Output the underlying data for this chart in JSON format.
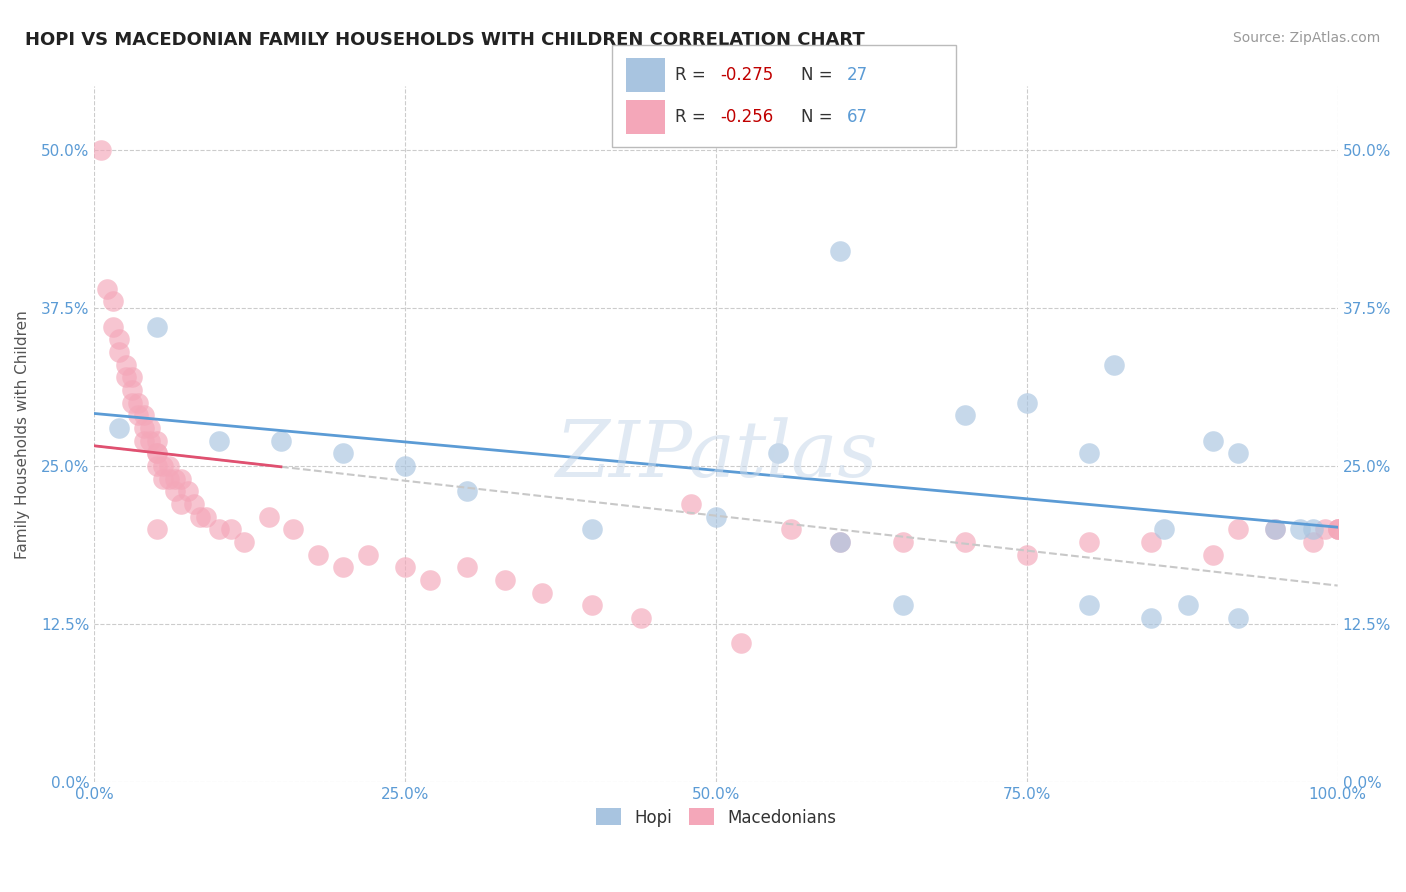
{
  "title": "HOPI VS MACEDONIAN FAMILY HOUSEHOLDS WITH CHILDREN CORRELATION CHART",
  "source_text": "Source: ZipAtlas.com",
  "ylabel": "Family Households with Children",
  "xlim": [
    0.0,
    100.0
  ],
  "ylim": [
    0.0,
    55.0
  ],
  "xticks": [
    0.0,
    25.0,
    50.0,
    75.0,
    100.0
  ],
  "yticks": [
    0.0,
    12.5,
    25.0,
    37.5,
    50.0
  ],
  "xtick_labels": [
    "0.0%",
    "25.0%",
    "50.0%",
    "75.0%",
    "100.0%"
  ],
  "ytick_labels": [
    "0.0%",
    "12.5%",
    "25.0%",
    "37.5%",
    "50.0%"
  ],
  "hopi_color": "#a8c4e0",
  "macedonian_color": "#f4a7b9",
  "hopi_R": -0.275,
  "hopi_N": 27,
  "macedonian_R": -0.256,
  "macedonian_N": 67,
  "watermark": "ZIPatlas",
  "hopi_scatter_x": [
    2,
    5,
    10,
    15,
    20,
    25,
    30,
    40,
    50,
    55,
    60,
    65,
    70,
    75,
    80,
    80,
    85,
    88,
    90,
    92,
    95,
    97,
    98,
    60,
    82,
    86,
    92
  ],
  "hopi_scatter_y": [
    28,
    36,
    27,
    27,
    26,
    25,
    23,
    20,
    21,
    26,
    19,
    14,
    29,
    30,
    26,
    14,
    13,
    14,
    27,
    26,
    20,
    20,
    20,
    42,
    33,
    20,
    13
  ],
  "macedonian_scatter_x": [
    0.5,
    1,
    1.5,
    1.5,
    2,
    2,
    2.5,
    2.5,
    3,
    3,
    3,
    3.5,
    3.5,
    4,
    4,
    4,
    4.5,
    4.5,
    5,
    5,
    5,
    5,
    5.5,
    5.5,
    6,
    6,
    6.5,
    6.5,
    7,
    7,
    7.5,
    8,
    8.5,
    9,
    10,
    11,
    12,
    14,
    16,
    18,
    20,
    22,
    25,
    27,
    30,
    33,
    36,
    40,
    44,
    48,
    52,
    56,
    60,
    65,
    70,
    75,
    80,
    85,
    90,
    92,
    95,
    98,
    99,
    100,
    100,
    100,
    5
  ],
  "macedonian_scatter_y": [
    50,
    39,
    38,
    36,
    35,
    34,
    33,
    32,
    32,
    31,
    30,
    30,
    29,
    29,
    28,
    27,
    28,
    27,
    27,
    26,
    26,
    25,
    25,
    24,
    25,
    24,
    24,
    23,
    24,
    22,
    23,
    22,
    21,
    21,
    20,
    20,
    19,
    21,
    20,
    18,
    17,
    18,
    17,
    16,
    17,
    16,
    15,
    14,
    13,
    22,
    11,
    20,
    19,
    19,
    19,
    18,
    19,
    19,
    18,
    20,
    20,
    19,
    20,
    20,
    20,
    20,
    20
  ],
  "background_color": "#ffffff",
  "grid_color": "#cccccc",
  "title_fontsize": 13,
  "tick_label_color": "#5b9bd5",
  "legend_R_color": "#c00000",
  "legend_N_color": "#5b9bd5",
  "hopi_line_color": "#5b9bd5",
  "mace_line_color": "#e05070",
  "mace_dashed_color": "#c8c8c8"
}
